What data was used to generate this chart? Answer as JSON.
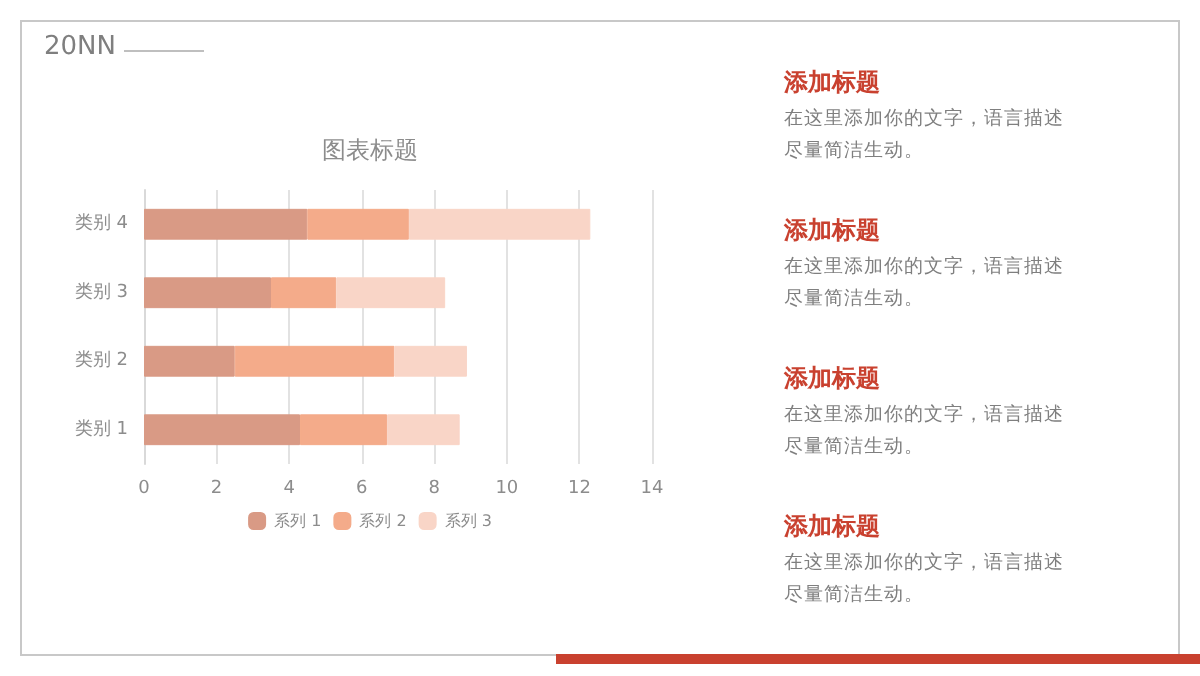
{
  "chart_data": {
    "type": "bar",
    "orientation": "horizontal",
    "stacked": true,
    "title": "图表标题",
    "categories": [
      "类别 4",
      "类别 3",
      "类别 2",
      "类别 1"
    ],
    "series": [
      {
        "name": "系列 1",
        "color": "#d99a85",
        "values": [
          4.5,
          3.5,
          2.5,
          4.3
        ]
      },
      {
        "name": "系列 2",
        "color": "#f4ab8a",
        "values": [
          2.8,
          1.8,
          4.4,
          2.4
        ]
      },
      {
        "name": "系列 3",
        "color": "#f9d5c7",
        "values": [
          5,
          3,
          2,
          2
        ]
      }
    ],
    "xlim": [
      0,
      14
    ],
    "xticks": [
      0,
      2,
      4,
      6,
      8,
      10,
      12,
      14
    ],
    "grid": "x",
    "legend": "bottom",
    "annotations": [
      "20NN",
      "添加标题",
      "在这里添加你的文字，语言描述尽量简洁生动。",
      "添加标题",
      "在这里添加你的文字，语言描述尽量简洁生动。",
      "添加标题",
      "在这里添加你的文字，语言描述尽量简洁生动。",
      "添加标题",
      "在这里添加你的文字，语言描述尽量简洁生动。"
    ]
  }
}
